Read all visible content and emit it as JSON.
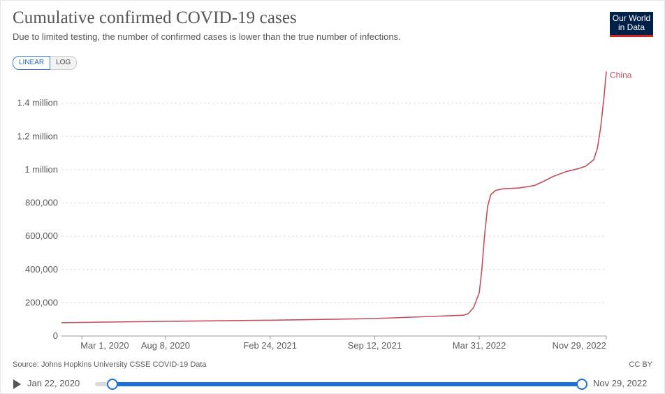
{
  "title": "Cumulative confirmed COVID-19 cases",
  "subtitle": "Due to limited testing, the number of confirmed cases is lower than the true number of infections.",
  "logo": {
    "line1": "Our World",
    "line2": "in Data"
  },
  "scale_toggle": {
    "linear": "LINEAR",
    "log": "LOG",
    "selected": "LINEAR"
  },
  "source": "Source: Johns Hopkins University CSSE COVID-19 Data",
  "license": "CC BY",
  "timeline": {
    "start": "Jan 22, 2020",
    "end": "Nov 29, 2022"
  },
  "colors": {
    "series": "#c14f5d",
    "accent": "#1e6fd6",
    "grid": "#dddddd"
  },
  "chart_data": {
    "type": "line",
    "title": "Cumulative confirmed COVID-19 cases",
    "x_range": [
      "2020-01-22",
      "2022-11-29"
    ],
    "ylim": [
      0,
      1600000
    ],
    "yticks": [
      {
        "value": 0,
        "label": "0"
      },
      {
        "value": 200000,
        "label": "200,000"
      },
      {
        "value": 400000,
        "label": "400,000"
      },
      {
        "value": 600000,
        "label": "600,000"
      },
      {
        "value": 800000,
        "label": "800,000"
      },
      {
        "value": 1000000,
        "label": "1 million"
      },
      {
        "value": 1200000,
        "label": "1.2 million"
      },
      {
        "value": 1400000,
        "label": "1.4 million"
      }
    ],
    "xticks": [
      {
        "date": "2020-03-01",
        "label": "Mar 1, 2020"
      },
      {
        "date": "2020-08-08",
        "label": "Aug 8, 2020"
      },
      {
        "date": "2021-02-24",
        "label": "Feb 24, 2021"
      },
      {
        "date": "2021-09-12",
        "label": "Sep 12, 2021"
      },
      {
        "date": "2022-03-31",
        "label": "Mar 31, 2022"
      },
      {
        "date": "2022-11-29",
        "label": "Nov 29, 2022"
      }
    ],
    "grid": true,
    "series": [
      {
        "name": "China",
        "color": "#c14f5d",
        "points": [
          [
            "2020-01-22",
            80000
          ],
          [
            "2020-03-01",
            82000
          ],
          [
            "2020-08-08",
            88000
          ],
          [
            "2021-02-24",
            95000
          ],
          [
            "2021-09-12",
            105000
          ],
          [
            "2022-03-01",
            125000
          ],
          [
            "2022-03-10",
            135000
          ],
          [
            "2022-03-20",
            170000
          ],
          [
            "2022-03-31",
            260000
          ],
          [
            "2022-04-05",
            400000
          ],
          [
            "2022-04-10",
            600000
          ],
          [
            "2022-04-16",
            780000
          ],
          [
            "2022-04-22",
            850000
          ],
          [
            "2022-05-01",
            875000
          ],
          [
            "2022-05-15",
            885000
          ],
          [
            "2022-06-15",
            890000
          ],
          [
            "2022-07-15",
            905000
          ],
          [
            "2022-08-01",
            930000
          ],
          [
            "2022-08-20",
            960000
          ],
          [
            "2022-09-15",
            990000
          ],
          [
            "2022-10-05",
            1005000
          ],
          [
            "2022-10-20",
            1020000
          ],
          [
            "2022-11-05",
            1060000
          ],
          [
            "2022-11-12",
            1130000
          ],
          [
            "2022-11-18",
            1250000
          ],
          [
            "2022-11-24",
            1420000
          ],
          [
            "2022-11-29",
            1590000
          ]
        ]
      }
    ]
  }
}
